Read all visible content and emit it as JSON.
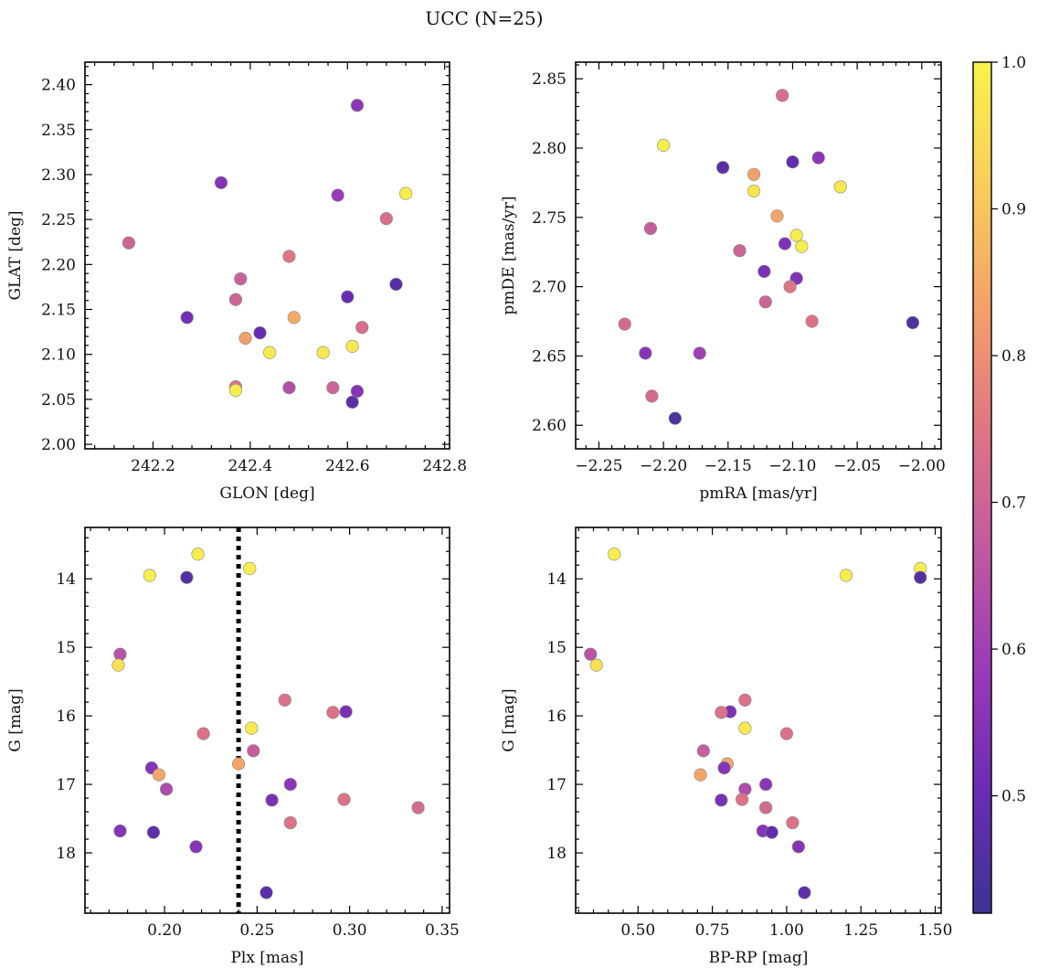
{
  "figure": {
    "title": "UCC (N=25)"
  },
  "colorbar": {
    "range": [
      0.42,
      1.0
    ],
    "ticks": [
      0.5,
      0.6,
      0.7,
      0.8,
      0.9,
      1.0
    ],
    "tick_labels": [
      "0.5",
      "0.6",
      "0.7",
      "0.8",
      "0.9",
      "1.0"
    ],
    "colormap": "plasma",
    "colormap_stops": [
      "#3d3492",
      "#6a2cb4",
      "#9a3ab8",
      "#c05aa0",
      "#df7683",
      "#f3a26a",
      "#f8ce5a",
      "#f7f24b"
    ]
  },
  "chart_data": [
    {
      "type": "scatter",
      "id": "glon-glat",
      "xlabel": "GLON [deg]",
      "ylabel": "GLAT [deg]",
      "xlim": [
        242.06,
        242.81
      ],
      "ylim": [
        1.995,
        2.425
      ],
      "invert_y": false,
      "xticks": [
        242.2,
        242.4,
        242.6,
        242.8
      ],
      "xtick_labels": [
        "242.2",
        "242.4",
        "242.6",
        "242.8"
      ],
      "yticks": [
        2.0,
        2.05,
        2.1,
        2.15,
        2.2,
        2.25,
        2.3,
        2.35,
        2.4
      ],
      "ytick_labels": [
        "2.00",
        "2.05",
        "2.10",
        "2.15",
        "2.20",
        "2.25",
        "2.30",
        "2.35",
        "2.40"
      ],
      "points": [
        {
          "x": 242.62,
          "y": 2.377,
          "c": 0.56
        },
        {
          "x": 242.34,
          "y": 2.291,
          "c": 0.55
        },
        {
          "x": 242.58,
          "y": 2.277,
          "c": 0.58
        },
        {
          "x": 242.72,
          "y": 2.279,
          "c": 0.99
        },
        {
          "x": 242.68,
          "y": 2.251,
          "c": 0.73
        },
        {
          "x": 242.15,
          "y": 2.224,
          "c": 0.7
        },
        {
          "x": 242.48,
          "y": 2.209,
          "c": 0.75
        },
        {
          "x": 242.38,
          "y": 2.184,
          "c": 0.69
        },
        {
          "x": 242.37,
          "y": 2.161,
          "c": 0.7
        },
        {
          "x": 242.7,
          "y": 2.178,
          "c": 0.47
        },
        {
          "x": 242.6,
          "y": 2.164,
          "c": 0.5
        },
        {
          "x": 242.27,
          "y": 2.141,
          "c": 0.52
        },
        {
          "x": 242.49,
          "y": 2.141,
          "c": 0.85
        },
        {
          "x": 242.42,
          "y": 2.124,
          "c": 0.5
        },
        {
          "x": 242.63,
          "y": 2.13,
          "c": 0.73
        },
        {
          "x": 242.39,
          "y": 2.118,
          "c": 0.83
        },
        {
          "x": 242.61,
          "y": 2.109,
          "c": 0.98
        },
        {
          "x": 242.44,
          "y": 2.102,
          "c": 0.98
        },
        {
          "x": 242.55,
          "y": 2.102,
          "c": 0.98
        },
        {
          "x": 242.37,
          "y": 2.064,
          "c": 0.74
        },
        {
          "x": 242.37,
          "y": 2.06,
          "c": 0.99
        },
        {
          "x": 242.48,
          "y": 2.063,
          "c": 0.64
        },
        {
          "x": 242.57,
          "y": 2.063,
          "c": 0.7
        },
        {
          "x": 242.62,
          "y": 2.059,
          "c": 0.55
        },
        {
          "x": 242.61,
          "y": 2.047,
          "c": 0.48
        }
      ]
    },
    {
      "type": "scatter",
      "id": "pmra-pmde",
      "xlabel": "pmRA [mas/yr]",
      "ylabel": "pmDE [mas/yr]",
      "xlim": [
        -2.268,
        -1.985
      ],
      "ylim": [
        2.583,
        2.862
      ],
      "invert_y": false,
      "xticks": [
        -2.25,
        -2.2,
        -2.15,
        -2.1,
        -2.05,
        -2.0
      ],
      "xtick_labels": [
        "−2.25",
        "−2.20",
        "−2.15",
        "−2.10",
        "−2.05",
        "−2.00"
      ],
      "yticks": [
        2.6,
        2.65,
        2.7,
        2.75,
        2.8,
        2.85
      ],
      "ytick_labels": [
        "2.60",
        "2.65",
        "2.70",
        "2.75",
        "2.80",
        "2.85"
      ],
      "points": [
        {
          "x": -2.108,
          "y": 2.838,
          "c": 0.73
        },
        {
          "x": -2.2,
          "y": 2.802,
          "c": 0.99
        },
        {
          "x": -2.08,
          "y": 2.793,
          "c": 0.56
        },
        {
          "x": -2.1,
          "y": 2.79,
          "c": 0.49
        },
        {
          "x": -2.154,
          "y": 2.786,
          "c": 0.47
        },
        {
          "x": -2.13,
          "y": 2.781,
          "c": 0.83
        },
        {
          "x": -2.13,
          "y": 2.769,
          "c": 0.97
        },
        {
          "x": -2.063,
          "y": 2.772,
          "c": 0.98
        },
        {
          "x": -2.112,
          "y": 2.751,
          "c": 0.84
        },
        {
          "x": -2.21,
          "y": 2.742,
          "c": 0.68
        },
        {
          "x": -2.097,
          "y": 2.737,
          "c": 0.99
        },
        {
          "x": -2.106,
          "y": 2.731,
          "c": 0.54
        },
        {
          "x": -2.093,
          "y": 2.729,
          "c": 0.99
        },
        {
          "x": -2.141,
          "y": 2.726,
          "c": 0.7
        },
        {
          "x": -2.122,
          "y": 2.711,
          "c": 0.53
        },
        {
          "x": -2.097,
          "y": 2.706,
          "c": 0.54
        },
        {
          "x": -2.102,
          "y": 2.7,
          "c": 0.75
        },
        {
          "x": -2.121,
          "y": 2.689,
          "c": 0.7
        },
        {
          "x": -2.085,
          "y": 2.675,
          "c": 0.74
        },
        {
          "x": -2.23,
          "y": 2.673,
          "c": 0.72
        },
        {
          "x": -2.007,
          "y": 2.674,
          "c": 0.46
        },
        {
          "x": -2.214,
          "y": 2.652,
          "c": 0.55
        },
        {
          "x": -2.172,
          "y": 2.652,
          "c": 0.6
        },
        {
          "x": -2.209,
          "y": 2.621,
          "c": 0.72
        },
        {
          "x": -2.191,
          "y": 2.605,
          "c": 0.45
        }
      ]
    },
    {
      "type": "scatter",
      "id": "plx-g",
      "xlabel": "Plx [mas]",
      "ylabel": "G [mag]",
      "xlim": [
        0.157,
        0.354
      ],
      "ylim": [
        13.25,
        18.88
      ],
      "invert_y": true,
      "vline": {
        "x": 0.24,
        "style": "dotted",
        "color": "#000000"
      },
      "xticks": [
        0.2,
        0.25,
        0.3,
        0.35
      ],
      "xtick_labels": [
        "0.20",
        "0.25",
        "0.30",
        "0.35"
      ],
      "yticks": [
        14,
        15,
        16,
        17,
        18
      ],
      "ytick_labels": [
        "14",
        "15",
        "16",
        "17",
        "18"
      ],
      "points": [
        {
          "x": 0.218,
          "y": 13.64,
          "c": 0.99
        },
        {
          "x": 0.246,
          "y": 13.85,
          "c": 0.99
        },
        {
          "x": 0.192,
          "y": 13.95,
          "c": 0.99
        },
        {
          "x": 0.212,
          "y": 13.98,
          "c": 0.46
        },
        {
          "x": 0.176,
          "y": 15.1,
          "c": 0.65
        },
        {
          "x": 0.175,
          "y": 15.26,
          "c": 0.96
        },
        {
          "x": 0.265,
          "y": 15.77,
          "c": 0.74
        },
        {
          "x": 0.298,
          "y": 15.94,
          "c": 0.53
        },
        {
          "x": 0.291,
          "y": 15.95,
          "c": 0.74
        },
        {
          "x": 0.247,
          "y": 16.18,
          "c": 0.98
        },
        {
          "x": 0.221,
          "y": 16.26,
          "c": 0.74
        },
        {
          "x": 0.248,
          "y": 16.51,
          "c": 0.68
        },
        {
          "x": 0.24,
          "y": 16.7,
          "c": 0.84
        },
        {
          "x": 0.193,
          "y": 16.76,
          "c": 0.55
        },
        {
          "x": 0.197,
          "y": 16.86,
          "c": 0.84
        },
        {
          "x": 0.268,
          "y": 17.0,
          "c": 0.56
        },
        {
          "x": 0.201,
          "y": 17.07,
          "c": 0.63
        },
        {
          "x": 0.258,
          "y": 17.23,
          "c": 0.53
        },
        {
          "x": 0.297,
          "y": 17.22,
          "c": 0.74
        },
        {
          "x": 0.337,
          "y": 17.34,
          "c": 0.72
        },
        {
          "x": 0.268,
          "y": 17.56,
          "c": 0.74
        },
        {
          "x": 0.176,
          "y": 17.68,
          "c": 0.55
        },
        {
          "x": 0.194,
          "y": 17.7,
          "c": 0.48
        },
        {
          "x": 0.217,
          "y": 17.91,
          "c": 0.55
        },
        {
          "x": 0.255,
          "y": 18.58,
          "c": 0.48
        }
      ]
    },
    {
      "type": "scatter",
      "id": "bprp-g",
      "xlabel": "BP-RP [mag]",
      "ylabel": "G [mag]",
      "xlim": [
        0.29,
        1.52
      ],
      "ylim": [
        13.25,
        18.88
      ],
      "invert_y": true,
      "xticks": [
        0.5,
        0.75,
        1.0,
        1.25,
        1.5
      ],
      "xtick_labels": [
        "0.50",
        "0.75",
        "1.00",
        "1.25",
        "1.50"
      ],
      "yticks": [
        14,
        15,
        16,
        17,
        18
      ],
      "ytick_labels": [
        "14",
        "15",
        "16",
        "17",
        "18"
      ],
      "points": [
        {
          "x": 0.42,
          "y": 13.64,
          "c": 0.99
        },
        {
          "x": 1.45,
          "y": 13.85,
          "c": 0.99
        },
        {
          "x": 1.2,
          "y": 13.95,
          "c": 0.99
        },
        {
          "x": 1.45,
          "y": 13.98,
          "c": 0.46
        },
        {
          "x": 0.34,
          "y": 15.1,
          "c": 0.65
        },
        {
          "x": 0.36,
          "y": 15.26,
          "c": 0.96
        },
        {
          "x": 0.86,
          "y": 15.77,
          "c": 0.74
        },
        {
          "x": 0.81,
          "y": 15.94,
          "c": 0.53
        },
        {
          "x": 0.78,
          "y": 15.95,
          "c": 0.74
        },
        {
          "x": 0.86,
          "y": 16.18,
          "c": 0.98
        },
        {
          "x": 1.0,
          "y": 16.26,
          "c": 0.74
        },
        {
          "x": 0.72,
          "y": 16.51,
          "c": 0.68
        },
        {
          "x": 0.8,
          "y": 16.7,
          "c": 0.84
        },
        {
          "x": 0.79,
          "y": 16.76,
          "c": 0.55
        },
        {
          "x": 0.71,
          "y": 16.86,
          "c": 0.84
        },
        {
          "x": 0.93,
          "y": 17.0,
          "c": 0.56
        },
        {
          "x": 0.86,
          "y": 17.07,
          "c": 0.63
        },
        {
          "x": 0.78,
          "y": 17.23,
          "c": 0.53
        },
        {
          "x": 0.85,
          "y": 17.22,
          "c": 0.74
        },
        {
          "x": 0.93,
          "y": 17.34,
          "c": 0.72
        },
        {
          "x": 1.02,
          "y": 17.56,
          "c": 0.74
        },
        {
          "x": 0.92,
          "y": 17.68,
          "c": 0.55
        },
        {
          "x": 0.95,
          "y": 17.7,
          "c": 0.48
        },
        {
          "x": 1.04,
          "y": 17.91,
          "c": 0.55
        },
        {
          "x": 1.06,
          "y": 18.58,
          "c": 0.48
        }
      ]
    }
  ]
}
